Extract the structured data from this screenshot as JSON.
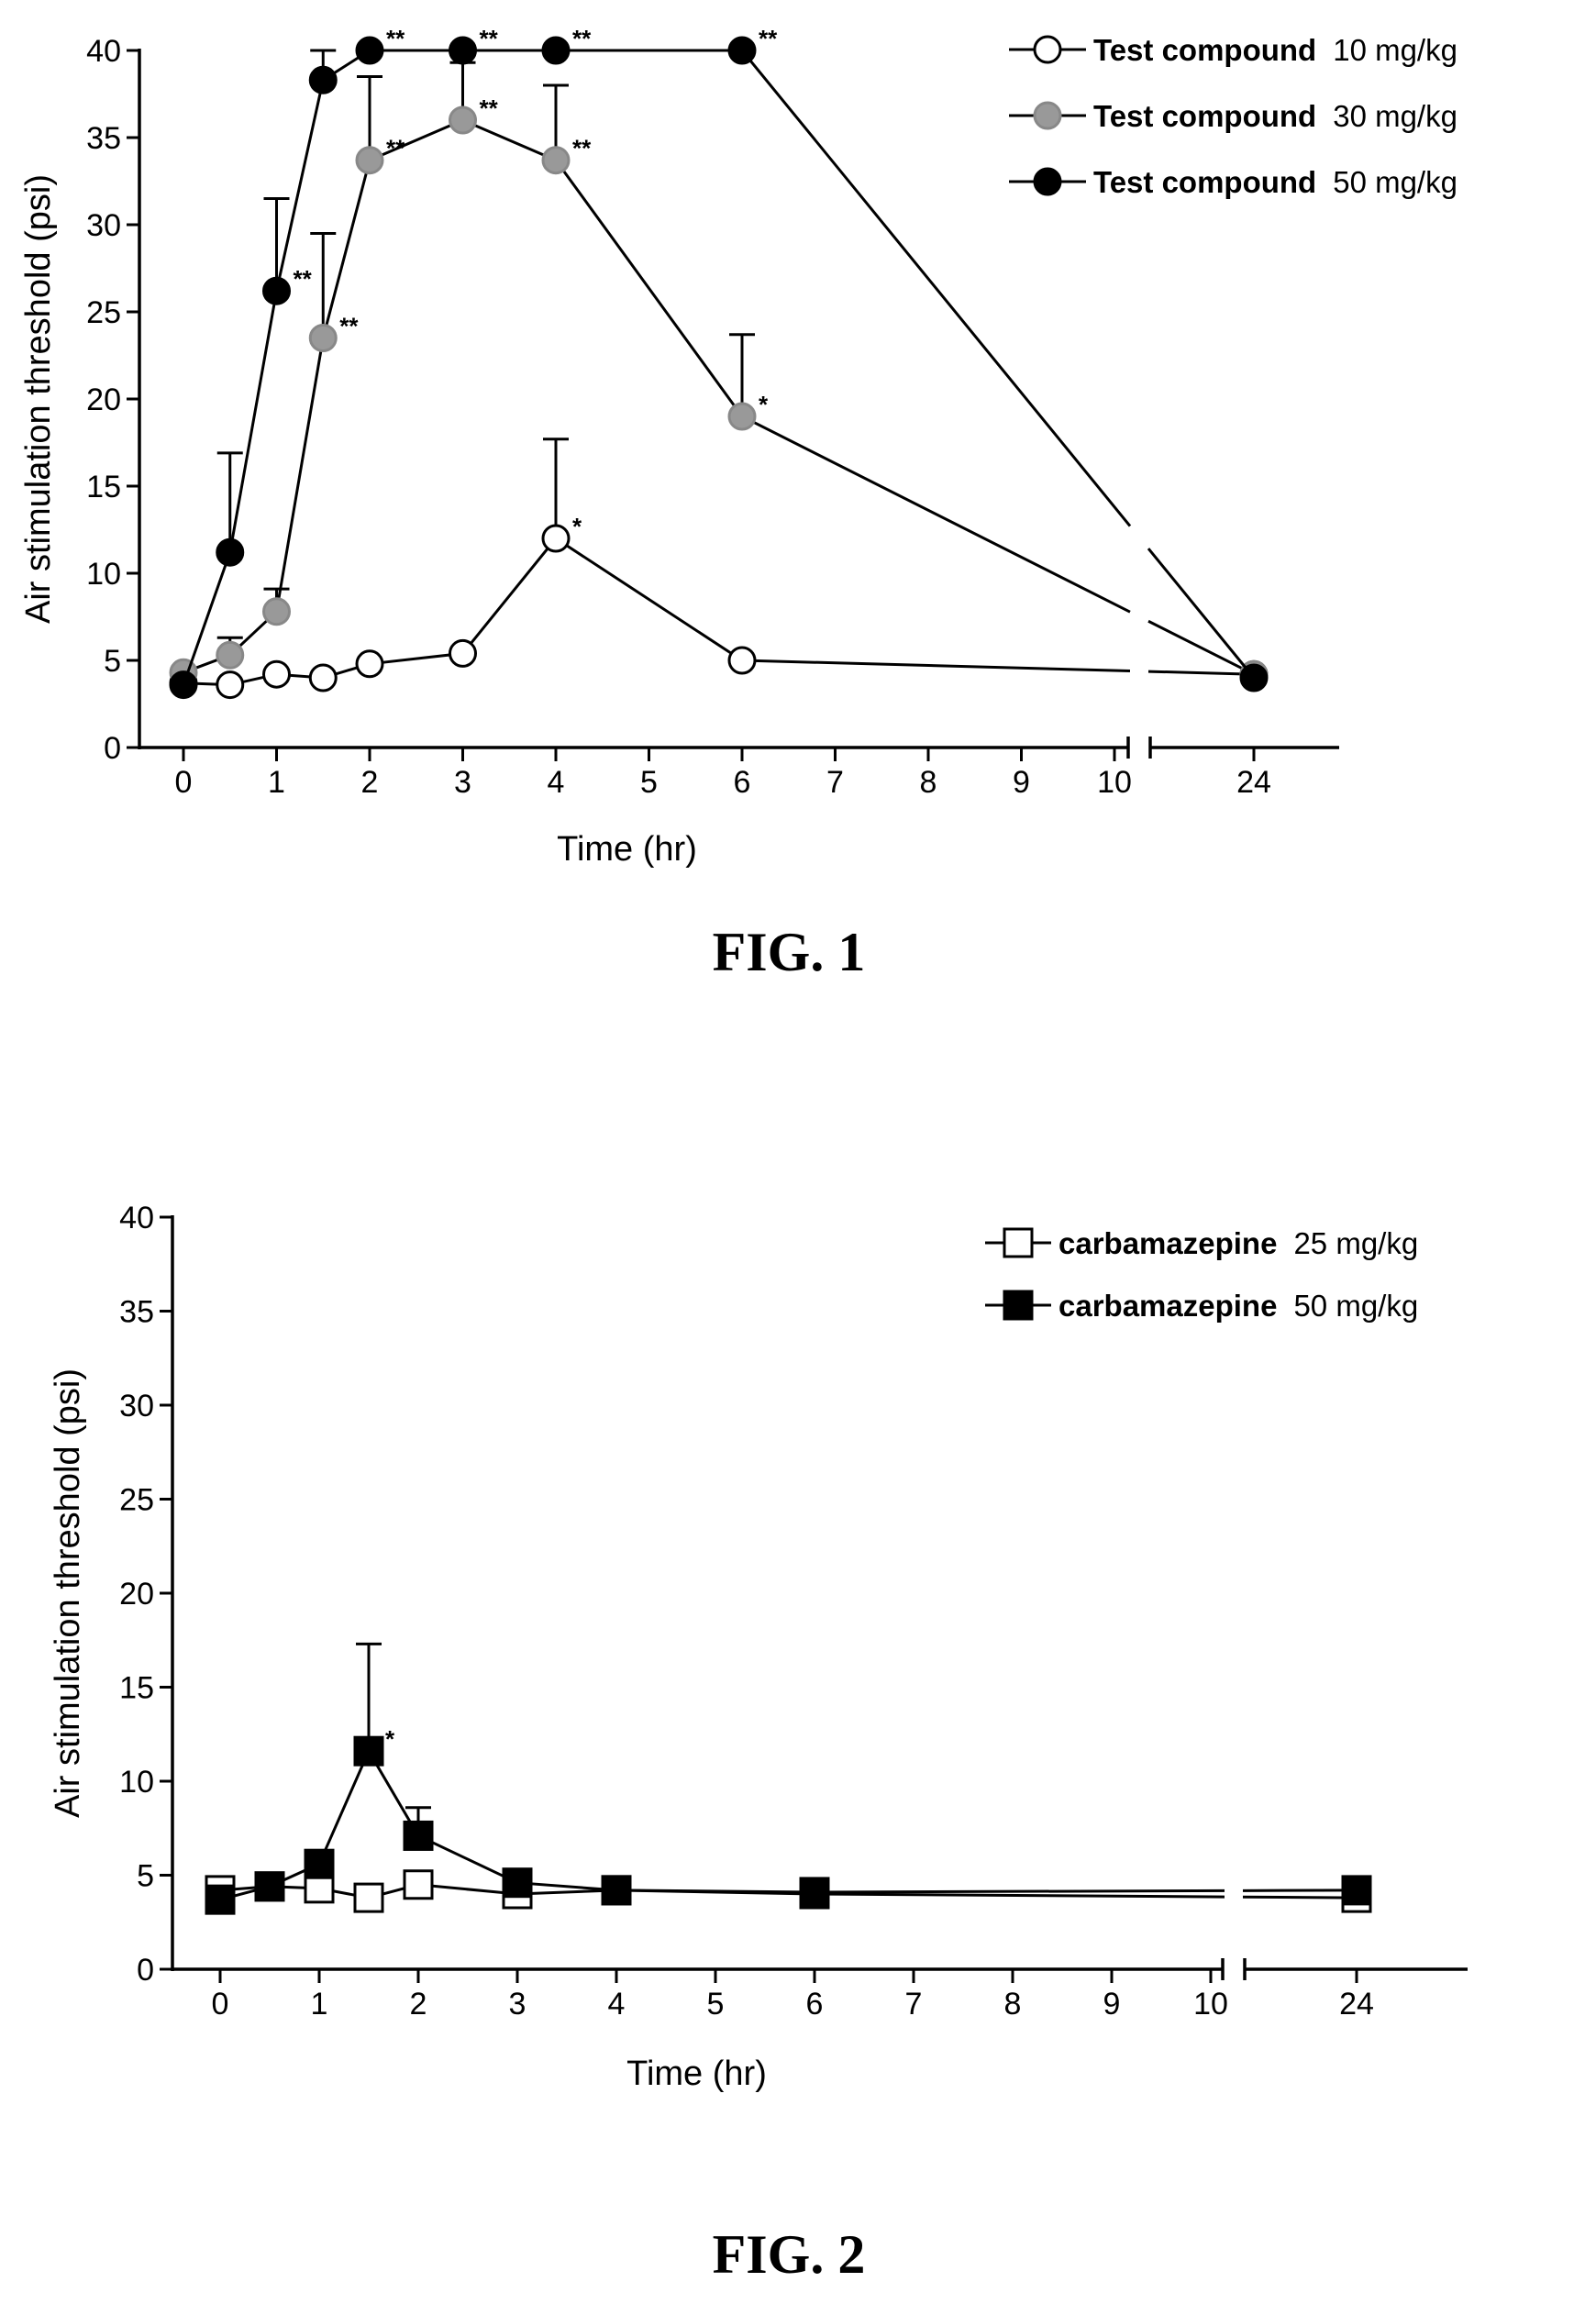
{
  "chart_data": [
    {
      "type": "line",
      "caption": "FIG. 1",
      "xlabel": "Time (hr)",
      "ylabel": "Air stimulation threshold (psi)",
      "ylim": [
        0,
        40
      ],
      "yticks": [
        0,
        5,
        10,
        15,
        20,
        25,
        30,
        35,
        40
      ],
      "xticks": [
        0,
        1,
        2,
        3,
        4,
        5,
        6,
        7,
        8,
        9,
        10,
        24
      ],
      "x_axis_break": "between 10 and 24",
      "grid": false,
      "legend_position": "top-right",
      "series": [
        {
          "name": "Test compound",
          "dose": "10 mg/kg",
          "marker": "circle",
          "fill": "#ffffff",
          "points": [
            {
              "x": 0,
              "y": 3.7
            },
            {
              "x": 0.5,
              "y": 3.6
            },
            {
              "x": 1,
              "y": 4.2
            },
            {
              "x": 1.5,
              "y": 4.0
            },
            {
              "x": 2,
              "y": 4.8
            },
            {
              "x": 3,
              "y": 5.4
            },
            {
              "x": 4,
              "y": 12.0,
              "err": 5.7,
              "sig": "*"
            },
            {
              "x": 6,
              "y": 5.0
            },
            {
              "x": 24,
              "y": 4.2
            }
          ]
        },
        {
          "name": "Test compound",
          "dose": "30 mg/kg",
          "marker": "circle",
          "fill": "#999999",
          "points": [
            {
              "x": 0,
              "y": 4.3
            },
            {
              "x": 0.5,
              "y": 5.3,
              "err": 1.0
            },
            {
              "x": 1,
              "y": 7.8,
              "err": 1.3
            },
            {
              "x": 1.5,
              "y": 23.5,
              "err": 6.0,
              "sig": "**"
            },
            {
              "x": 2,
              "y": 33.7,
              "err": 4.8,
              "sig": "**"
            },
            {
              "x": 3,
              "y": 36.0,
              "err": 3.3,
              "sig": "**"
            },
            {
              "x": 4,
              "y": 33.7,
              "err": 4.3,
              "sig": "**"
            },
            {
              "x": 6,
              "y": 19.0,
              "err": 4.7,
              "sig": "*"
            },
            {
              "x": 24,
              "y": 4.2
            }
          ]
        },
        {
          "name": "Test compound",
          "dose": "50 mg/kg",
          "marker": "circle",
          "fill": "#000000",
          "points": [
            {
              "x": 0,
              "y": 3.6
            },
            {
              "x": 0.5,
              "y": 11.2,
              "err": 5.7
            },
            {
              "x": 1,
              "y": 26.2,
              "err": 5.3,
              "sig": "**"
            },
            {
              "x": 1.5,
              "y": 38.3,
              "err": 1.7
            },
            {
              "x": 2,
              "y": 40.0,
              "sig": "**"
            },
            {
              "x": 3,
              "y": 40.0,
              "sig": "**"
            },
            {
              "x": 4,
              "y": 40.0,
              "sig": "**"
            },
            {
              "x": 6,
              "y": 40.0,
              "sig": "**"
            },
            {
              "x": 24,
              "y": 4.0
            }
          ]
        }
      ]
    },
    {
      "type": "line",
      "caption": "FIG. 2",
      "xlabel": "Time (hr)",
      "ylabel": "Air stimulation threshold (psi)",
      "ylim": [
        0,
        40
      ],
      "yticks": [
        0,
        5,
        10,
        15,
        20,
        25,
        30,
        35,
        40
      ],
      "xticks": [
        0,
        1,
        2,
        3,
        4,
        5,
        6,
        7,
        8,
        9,
        10,
        24
      ],
      "x_axis_break": "between 10 and 24",
      "grid": false,
      "legend_position": "top-right",
      "series": [
        {
          "name": "carbamazepine",
          "dose": "25 mg/kg",
          "marker": "square",
          "fill": "#ffffff",
          "points": [
            {
              "x": 0,
              "y": 4.2
            },
            {
              "x": 0.5,
              "y": 4.4
            },
            {
              "x": 1,
              "y": 4.3
            },
            {
              "x": 1.5,
              "y": 3.8
            },
            {
              "x": 2,
              "y": 4.5
            },
            {
              "x": 3,
              "y": 4.0
            },
            {
              "x": 4,
              "y": 4.2
            },
            {
              "x": 6,
              "y": 4.0
            },
            {
              "x": 24,
              "y": 3.8
            }
          ]
        },
        {
          "name": "carbamazepine",
          "dose": "50 mg/kg",
          "marker": "square",
          "fill": "#000000",
          "points": [
            {
              "x": 0,
              "y": 3.7
            },
            {
              "x": 0.5,
              "y": 4.4
            },
            {
              "x": 1,
              "y": 5.6
            },
            {
              "x": 1.5,
              "y": 11.6,
              "err": 5.7,
              "sig": "*"
            },
            {
              "x": 2,
              "y": 7.1,
              "err": 1.5
            },
            {
              "x": 3,
              "y": 4.6
            },
            {
              "x": 4,
              "y": 4.2
            },
            {
              "x": 6,
              "y": 4.1
            },
            {
              "x": 24,
              "y": 4.2
            }
          ]
        }
      ]
    }
  ]
}
